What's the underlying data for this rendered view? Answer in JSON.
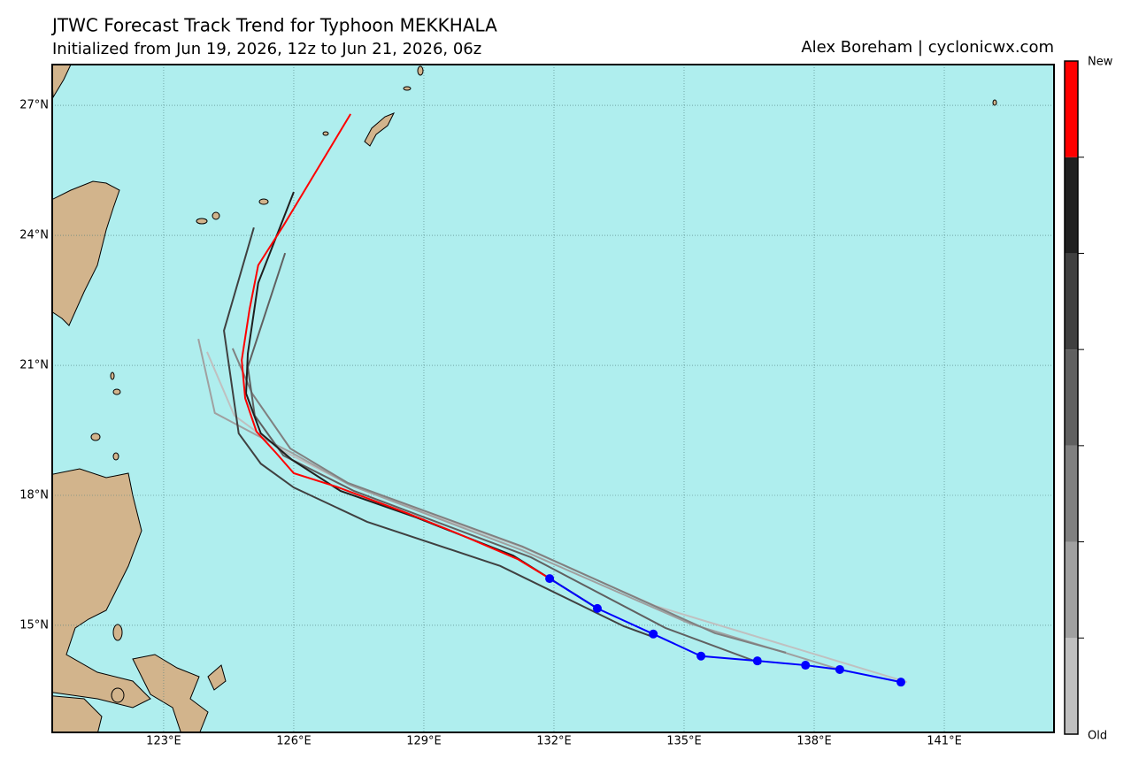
{
  "chart_data": {
    "type": "map-tracks",
    "title": "JTWC Forecast Track Trend for Typhoon MEKKHALA",
    "subtitle": "Initialized from Jun 19, 2026, 12z to Jun 21, 2026, 06z",
    "credit": "Alex Boreham | cyclonicwx.com",
    "colorbar_labels": {
      "top": "New",
      "bottom": "Old"
    },
    "xlim": [
      120.43,
      143.53
    ],
    "ylim": [
      12.53,
      27.94
    ],
    "xticks": [
      {
        "value": 123,
        "label": "123°E"
      },
      {
        "value": 126,
        "label": "126°E"
      },
      {
        "value": 129,
        "label": "129°E"
      },
      {
        "value": 132,
        "label": "132°E"
      },
      {
        "value": 135,
        "label": "135°E"
      },
      {
        "value": 138,
        "label": "138°E"
      },
      {
        "value": 141,
        "label": "141°E"
      }
    ],
    "yticks": [
      {
        "value": 15,
        "label": "15°N"
      },
      {
        "value": 18,
        "label": "18°N"
      },
      {
        "value": 21,
        "label": "21°N"
      },
      {
        "value": 24,
        "label": "24°N"
      },
      {
        "value": 27,
        "label": "27°N"
      }
    ],
    "grid": true,
    "series": [
      {
        "color": "#c0c0c0",
        "lon": [
          140.14,
          134.33,
          131.33,
          127.39,
          125.76,
          124.63,
          124.0
        ],
        "lat": [
          13.69,
          15.45,
          16.78,
          18.2,
          19.02,
          19.84,
          21.31
        ]
      },
      {
        "color": "#a0a0a0",
        "lon": [
          138.59,
          135.14,
          131.27,
          127.29,
          125.96,
          125.14,
          124.18,
          123.8
        ],
        "lat": [
          13.98,
          15.04,
          16.73,
          18.24,
          18.98,
          19.39,
          19.9,
          21.61
        ]
      },
      {
        "color": "#808080",
        "lon": [
          137.35,
          135.71,
          131.27,
          127.24,
          125.92,
          125.04,
          124.59
        ],
        "lat": [
          14.37,
          14.82,
          16.82,
          18.29,
          19.08,
          20.35,
          21.39
        ]
      },
      {
        "color": "#606060",
        "lon": [
          136.78,
          134.57,
          131.47,
          127.39,
          125.76,
          125.1,
          124.94,
          125.8
        ],
        "lat": [
          14.12,
          14.94,
          16.57,
          18.1,
          18.92,
          19.84,
          20.96,
          23.59
        ]
      },
      {
        "color": "#404040",
        "lon": [
          134.29,
          133.61,
          130.76,
          127.69,
          126.0,
          125.24,
          124.73,
          124.39,
          125.08
        ],
        "lat": [
          14.73,
          14.98,
          16.37,
          17.39,
          18.18,
          18.73,
          19.43,
          21.8,
          24.18
        ]
      },
      {
        "color": "#202020",
        "lon": [
          133.0,
          131.06,
          128.82,
          127.08,
          125.96,
          125.24,
          124.9,
          124.94,
          125.18,
          126.0
        ],
        "lat": [
          15.39,
          16.61,
          17.49,
          18.1,
          18.82,
          19.43,
          20.35,
          21.27,
          22.9,
          25.0
        ]
      },
      {
        "color": "#ff0000",
        "lon": [
          131.9,
          131.16,
          129.73,
          128.61,
          126.98,
          126.0,
          125.59,
          125.14,
          124.88,
          124.8,
          124.98,
          125.18,
          125.76,
          127.31
        ],
        "lat": [
          16.08,
          16.53,
          17.14,
          17.59,
          18.2,
          18.51,
          18.98,
          19.47,
          20.24,
          21.12,
          22.29,
          23.31,
          24.22,
          26.8
        ]
      }
    ],
    "best_track": {
      "color": "#0000ff",
      "lon": [
        140.0,
        138.59,
        137.8,
        136.69,
        135.39,
        134.29,
        133.0,
        131.9
      ],
      "lat": [
        13.69,
        13.98,
        14.08,
        14.18,
        14.29,
        14.8,
        15.39,
        16.08
      ]
    }
  }
}
